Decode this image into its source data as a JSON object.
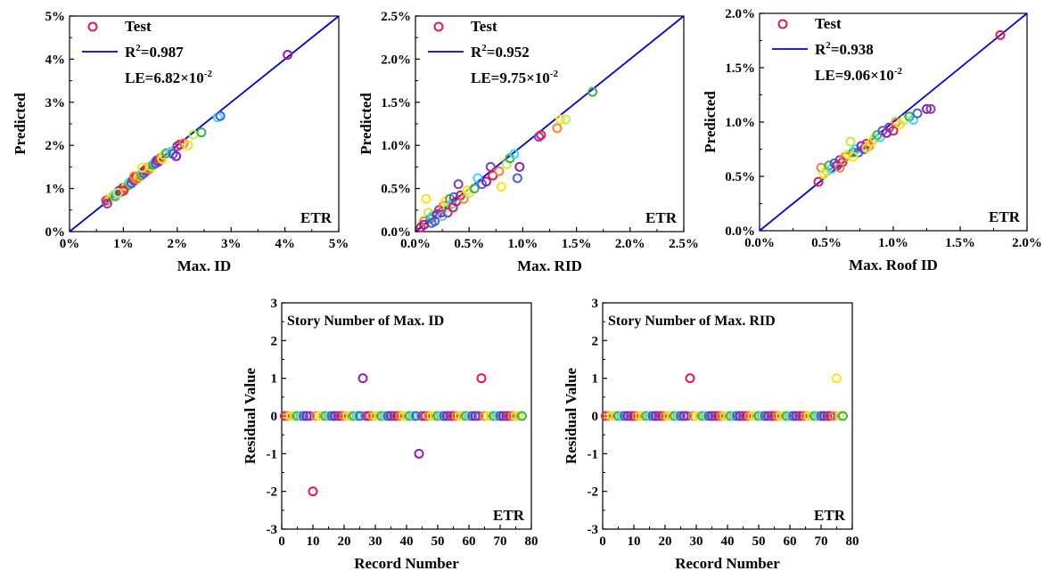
{
  "chart_data": [
    {
      "type": "scatter",
      "xlabel": "Max. ID",
      "ylabel": "Predicted",
      "xlim": [
        0,
        5
      ],
      "ylim": [
        0,
        5
      ],
      "xticks": [
        "0%",
        "1%",
        "2%",
        "3%",
        "4%",
        "5%"
      ],
      "yticks": [
        "0%",
        "1%",
        "2%",
        "3%",
        "4%",
        "5%"
      ],
      "legend": {
        "marker_label": "Test",
        "r2_label": "R",
        "r2_sup": "2",
        "r2_value": "=0.987",
        "le_label": "LE=6.82×10",
        "le_sup": "-2"
      },
      "tag": "ETR",
      "reference_line": [
        [
          0,
          0
        ],
        [
          5,
          5
        ]
      ],
      "points": [
        [
          0.68,
          0.72
        ],
        [
          0.72,
          0.75
        ],
        [
          0.78,
          0.8
        ],
        [
          0.82,
          0.85
        ],
        [
          0.85,
          0.82
        ],
        [
          0.88,
          0.88
        ],
        [
          0.92,
          0.95
        ],
        [
          0.95,
          0.92
        ],
        [
          0.98,
          1.0
        ],
        [
          1.0,
          1.02
        ],
        [
          1.02,
          0.98
        ],
        [
          1.05,
          1.05
        ],
        [
          1.08,
          1.1
        ],
        [
          1.1,
          1.08
        ],
        [
          1.12,
          1.15
        ],
        [
          1.15,
          1.12
        ],
        [
          1.18,
          1.2
        ],
        [
          1.2,
          1.18
        ],
        [
          1.22,
          1.25
        ],
        [
          1.25,
          1.22
        ],
        [
          1.28,
          1.28
        ],
        [
          1.3,
          1.32
        ],
        [
          1.33,
          1.3
        ],
        [
          1.35,
          1.38
        ],
        [
          1.38,
          1.35
        ],
        [
          1.4,
          1.42
        ],
        [
          1.42,
          1.4
        ],
        [
          1.45,
          1.48
        ],
        [
          1.48,
          1.45
        ],
        [
          1.5,
          1.52
        ],
        [
          1.52,
          1.5
        ],
        [
          1.55,
          1.55
        ],
        [
          1.58,
          1.6
        ],
        [
          1.6,
          1.58
        ],
        [
          1.62,
          1.65
        ],
        [
          1.65,
          1.62
        ],
        [
          1.68,
          1.7
        ],
        [
          1.7,
          1.72
        ],
        [
          1.72,
          1.68
        ],
        [
          1.75,
          1.78
        ],
        [
          1.8,
          1.82
        ],
        [
          1.88,
          1.85
        ],
        [
          1.92,
          1.8
        ],
        [
          1.98,
          1.75
        ],
        [
          2.0,
          1.98
        ],
        [
          2.05,
          2.02
        ],
        [
          2.12,
          2.05
        ],
        [
          2.2,
          2.0
        ],
        [
          2.3,
          2.25
        ],
        [
          2.45,
          2.3
        ],
        [
          2.75,
          2.65
        ],
        [
          2.8,
          2.68
        ],
        [
          4.05,
          4.1
        ],
        [
          0.7,
          0.65
        ],
        [
          1.0,
          0.95
        ],
        [
          1.2,
          1.28
        ],
        [
          1.35,
          1.48
        ],
        [
          0.9,
          0.9
        ]
      ]
    },
    {
      "type": "scatter",
      "xlabel": "Max. RID",
      "ylabel": "Predicted",
      "xlim": [
        0,
        2.5
      ],
      "ylim": [
        0,
        2.5
      ],
      "xticks": [
        "0.0%",
        "0.5%",
        "1.0%",
        "1.5%",
        "2.0%",
        "2.5%"
      ],
      "yticks": [
        "0.0%",
        "0.5%",
        "1.0%",
        "1.5%",
        "2.0%",
        "2.5%"
      ],
      "legend": {
        "marker_label": "Test",
        "r2_label": "R",
        "r2_sup": "2",
        "r2_value": "=0.952",
        "le_label": "LE=9.75×10",
        "le_sup": "-2"
      },
      "tag": "ETR",
      "reference_line": [
        [
          0,
          0
        ],
        [
          2.5,
          2.5
        ]
      ],
      "points": [
        [
          0.05,
          0.05
        ],
        [
          0.08,
          0.12
        ],
        [
          0.1,
          0.38
        ],
        [
          0.12,
          0.22
        ],
        [
          0.14,
          0.15
        ],
        [
          0.16,
          0.18
        ],
        [
          0.18,
          0.12
        ],
        [
          0.2,
          0.2
        ],
        [
          0.22,
          0.25
        ],
        [
          0.24,
          0.22
        ],
        [
          0.26,
          0.3
        ],
        [
          0.28,
          0.35
        ],
        [
          0.3,
          0.28
        ],
        [
          0.32,
          0.38
        ],
        [
          0.34,
          0.32
        ],
        [
          0.36,
          0.4
        ],
        [
          0.38,
          0.35
        ],
        [
          0.4,
          0.55
        ],
        [
          0.42,
          0.42
        ],
        [
          0.45,
          0.38
        ],
        [
          0.48,
          0.48
        ],
        [
          0.5,
          0.45
        ],
        [
          0.55,
          0.5
        ],
        [
          0.58,
          0.62
        ],
        [
          0.62,
          0.55
        ],
        [
          0.66,
          0.58
        ],
        [
          0.7,
          0.75
        ],
        [
          0.72,
          0.65
        ],
        [
          0.78,
          0.7
        ],
        [
          0.8,
          0.52
        ],
        [
          0.85,
          0.78
        ],
        [
          0.88,
          0.85
        ],
        [
          0.92,
          0.9
        ],
        [
          0.95,
          0.62
        ],
        [
          0.97,
          0.75
        ],
        [
          1.15,
          1.1
        ],
        [
          1.17,
          1.12
        ],
        [
          1.32,
          1.2
        ],
        [
          1.35,
          1.3
        ],
        [
          1.4,
          1.3
        ],
        [
          1.65,
          1.62
        ],
        [
          0.25,
          0.18
        ],
        [
          0.15,
          0.1
        ],
        [
          0.08,
          0.08
        ],
        [
          0.3,
          0.22
        ],
        [
          0.35,
          0.28
        ]
      ]
    },
    {
      "type": "scatter",
      "xlabel": "Max. Roof ID",
      "ylabel": "Predicted",
      "xlim": [
        0,
        2.0
      ],
      "ylim": [
        0,
        2.0
      ],
      "xticks": [
        "0.0%",
        "0.5%",
        "1.0%",
        "1.5%",
        "2.0%"
      ],
      "yticks": [
        "0.0%",
        "0.5%",
        "1.0%",
        "1.5%",
        "2.0%"
      ],
      "legend": {
        "marker_label": "Test",
        "r2_label": "R",
        "r2_sup": "2",
        "r2_value": "=0.938",
        "le_label": "LE=9.06×10",
        "le_sup": "-2"
      },
      "tag": "ETR",
      "reference_line": [
        [
          0,
          0
        ],
        [
          2.0,
          2.0
        ]
      ],
      "points": [
        [
          0.44,
          0.45
        ],
        [
          0.46,
          0.58
        ],
        [
          0.48,
          0.52
        ],
        [
          0.5,
          0.55
        ],
        [
          0.52,
          0.6
        ],
        [
          0.54,
          0.57
        ],
        [
          0.56,
          0.62
        ],
        [
          0.58,
          0.6
        ],
        [
          0.6,
          0.65
        ],
        [
          0.62,
          0.63
        ],
        [
          0.64,
          0.68
        ],
        [
          0.66,
          0.7
        ],
        [
          0.68,
          0.82
        ],
        [
          0.7,
          0.72
        ],
        [
          0.72,
          0.75
        ],
        [
          0.74,
          0.72
        ],
        [
          0.76,
          0.78
        ],
        [
          0.78,
          0.75
        ],
        [
          0.8,
          0.8
        ],
        [
          0.82,
          0.78
        ],
        [
          0.84,
          0.82
        ],
        [
          0.86,
          0.85
        ],
        [
          0.88,
          0.88
        ],
        [
          0.9,
          0.86
        ],
        [
          0.92,
          0.92
        ],
        [
          0.95,
          0.9
        ],
        [
          0.97,
          0.95
        ],
        [
          1.0,
          0.92
        ],
        [
          1.02,
          1.0
        ],
        [
          1.05,
          0.98
        ],
        [
          1.08,
          1.02
        ],
        [
          1.12,
          1.05
        ],
        [
          1.15,
          1.02
        ],
        [
          1.18,
          1.08
        ],
        [
          1.25,
          1.12
        ],
        [
          1.28,
          1.12
        ],
        [
          1.8,
          1.8
        ],
        [
          0.6,
          0.58
        ],
        [
          0.7,
          0.68
        ],
        [
          0.8,
          0.76
        ]
      ]
    },
    {
      "type": "scatter",
      "title": "Story Number of Max. ID",
      "xlabel": "Record Number",
      "ylabel": "Residual Value",
      "xlim": [
        0,
        80
      ],
      "ylim": [
        -3,
        3
      ],
      "xticks": [
        "0",
        "10",
        "20",
        "30",
        "40",
        "50",
        "60",
        "70",
        "80"
      ],
      "yticks": [
        "-3",
        "-2",
        "-1",
        "0",
        "1",
        "2",
        "3"
      ],
      "tag": "ETR",
      "x_start": 1,
      "x_end": 77,
      "outliers": [
        [
          10,
          -2
        ],
        [
          26,
          1
        ],
        [
          44,
          -1
        ],
        [
          64,
          1
        ]
      ]
    },
    {
      "type": "scatter",
      "title": "Story Number of Max. RID",
      "xlabel": "Record Number",
      "ylabel": "Residual Value",
      "xlim": [
        0,
        80
      ],
      "ylim": [
        -3,
        3
      ],
      "xticks": [
        "0",
        "10",
        "20",
        "30",
        "40",
        "50",
        "60",
        "70",
        "80"
      ],
      "yticks": [
        "-3",
        "-2",
        "-1",
        "0",
        "1",
        "2",
        "3"
      ],
      "tag": "ETR",
      "x_start": 1,
      "x_end": 77,
      "outliers": [
        [
          28,
          1
        ],
        [
          75,
          1
        ]
      ]
    }
  ]
}
